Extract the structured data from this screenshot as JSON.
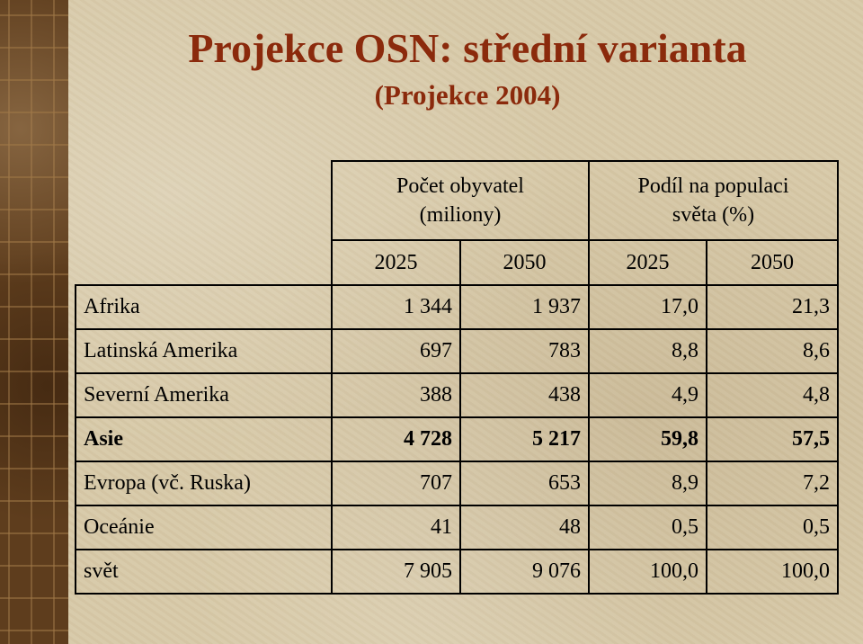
{
  "title": "Projekce OSN: střední varianta",
  "subtitle": "(Projekce 2004)",
  "table": {
    "group_headers": [
      "Počet obyvatel\n(miliony)",
      "Podíl na populaci\nsvěta (%)"
    ],
    "years": [
      "2025",
      "2050",
      "2025",
      "2050"
    ],
    "rows": [
      {
        "name": "Afrika",
        "values": [
          "1 344",
          "1 937",
          "17,0",
          "21,3"
        ],
        "bold": false
      },
      {
        "name": "Latinská Amerika",
        "values": [
          "697",
          "783",
          "8,8",
          "8,6"
        ],
        "bold": false
      },
      {
        "name": "Severní Amerika",
        "values": [
          "388",
          "438",
          "4,9",
          "4,8"
        ],
        "bold": false
      },
      {
        "name": "Asie",
        "values": [
          "4 728",
          "5 217",
          "59,8",
          "57,5"
        ],
        "bold": true
      },
      {
        "name": "Evropa (vč. Ruska)",
        "values": [
          "707",
          "653",
          "8,9",
          "7,2"
        ],
        "bold": false
      },
      {
        "name": "Oceánie",
        "values": [
          "41",
          "48",
          "0,5",
          "0,5"
        ],
        "bold": false
      },
      {
        "name": "svět",
        "values": [
          "7 905",
          "9 076",
          "100,0",
          "100,0"
        ],
        "bold": false
      }
    ]
  },
  "colors": {
    "title": "#8b2a0c",
    "background": "#d7c9a8",
    "strip": "#5e3d1d"
  }
}
